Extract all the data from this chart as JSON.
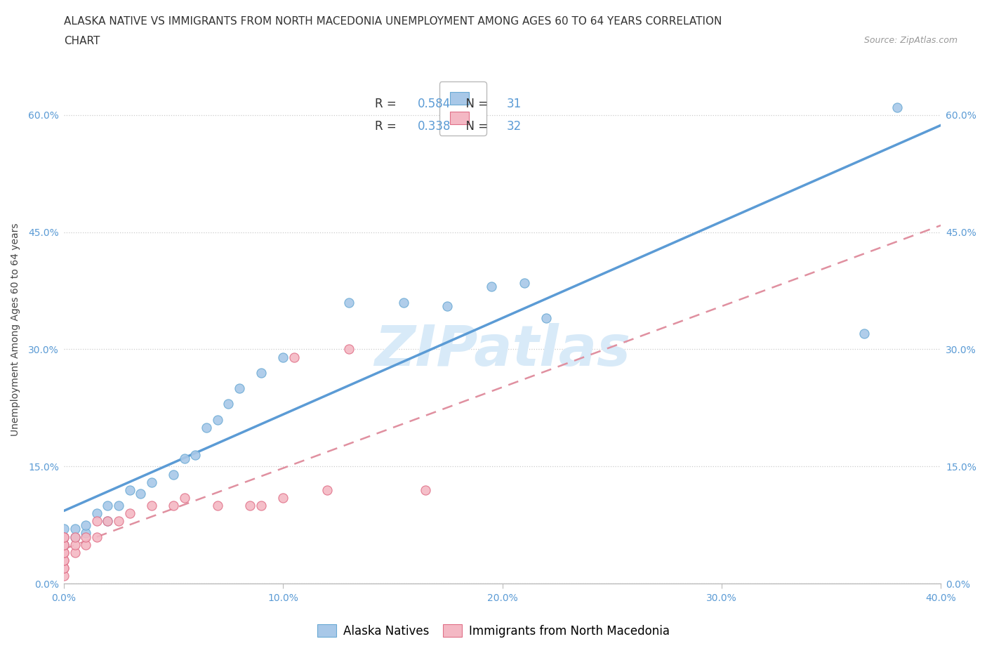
{
  "title_line1": "ALASKA NATIVE VS IMMIGRANTS FROM NORTH MACEDONIA UNEMPLOYMENT AMONG AGES 60 TO 64 YEARS CORRELATION",
  "title_line2": "CHART",
  "source_text": "Source: ZipAtlas.com",
  "xlim": [
    0.0,
    0.4
  ],
  "ylim": [
    0.0,
    0.65
  ],
  "xtick_vals": [
    0.0,
    0.1,
    0.2,
    0.3,
    0.4
  ],
  "ytick_vals": [
    0.0,
    0.15,
    0.3,
    0.45,
    0.6
  ],
  "xtick_labels": [
    "0.0%",
    "10.0%",
    "20.0%",
    "30.0%",
    "40.0%"
  ],
  "ytick_labels": [
    "0.0%",
    "15.0%",
    "30.0%",
    "45.0%",
    "60.0%"
  ],
  "ylabel": "Unemployment Among Ages 60 to 64 years",
  "legend_label1": "Alaska Natives",
  "legend_label2": "Immigrants from North Macedonia",
  "R1": "0.584",
  "N1": "31",
  "R2": "0.338",
  "N2": "32",
  "blue_fill": "#A8C8E8",
  "blue_edge": "#6AAAD4",
  "blue_line": "#5B9BD5",
  "pink_fill": "#F4B8C4",
  "pink_edge": "#E07088",
  "pink_line": "#E090A0",
  "watermark_color": "#D8EAF8",
  "bg": "#FFFFFF",
  "tick_color": "#5B9BD5",
  "grid_color": "#CCCCCC",
  "blue_scatter_x": [
    0.0,
    0.0,
    0.0,
    0.005,
    0.005,
    0.01,
    0.01,
    0.015,
    0.02,
    0.02,
    0.025,
    0.03,
    0.035,
    0.04,
    0.05,
    0.055,
    0.06,
    0.065,
    0.07,
    0.075,
    0.08,
    0.09,
    0.1,
    0.13,
    0.155,
    0.175,
    0.195,
    0.21,
    0.22,
    0.365,
    0.38
  ],
  "blue_scatter_y": [
    0.05,
    0.06,
    0.07,
    0.06,
    0.07,
    0.065,
    0.075,
    0.09,
    0.08,
    0.1,
    0.1,
    0.12,
    0.115,
    0.13,
    0.14,
    0.16,
    0.165,
    0.2,
    0.21,
    0.23,
    0.25,
    0.27,
    0.29,
    0.36,
    0.36,
    0.355,
    0.38,
    0.385,
    0.34,
    0.32,
    0.61
  ],
  "pink_scatter_x": [
    0.0,
    0.0,
    0.0,
    0.0,
    0.0,
    0.0,
    0.0,
    0.0,
    0.0,
    0.0,
    0.0,
    0.005,
    0.005,
    0.005,
    0.01,
    0.01,
    0.015,
    0.015,
    0.02,
    0.025,
    0.03,
    0.04,
    0.05,
    0.055,
    0.07,
    0.085,
    0.09,
    0.1,
    0.105,
    0.12,
    0.13,
    0.165
  ],
  "pink_scatter_y": [
    0.01,
    0.02,
    0.02,
    0.03,
    0.03,
    0.04,
    0.04,
    0.05,
    0.05,
    0.06,
    0.06,
    0.04,
    0.05,
    0.06,
    0.05,
    0.06,
    0.06,
    0.08,
    0.08,
    0.08,
    0.09,
    0.1,
    0.1,
    0.11,
    0.1,
    0.1,
    0.1,
    0.11,
    0.29,
    0.12,
    0.3,
    0.12
  ],
  "title_fontsize": 11,
  "ylabel_fontsize": 10,
  "tick_fontsize": 10,
  "legend_fontsize": 12,
  "source_fontsize": 9
}
